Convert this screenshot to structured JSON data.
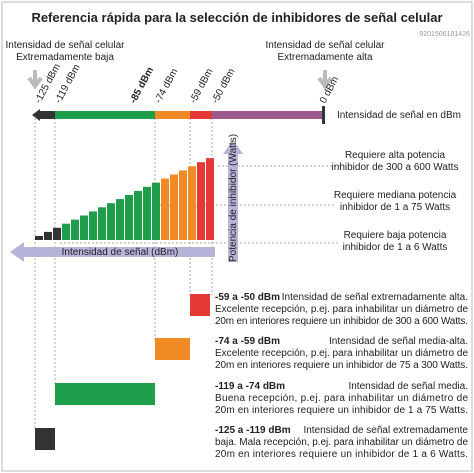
{
  "header": {
    "title": "Referencia rápida para la selección de inhibidores de señal celular",
    "image_id": "9201506181426"
  },
  "top_labels": {
    "low": [
      "Intensidad de señal celular",
      "Extremadamente baja"
    ],
    "high": [
      "Intensidad de señal celular",
      "Extremadamente alta"
    ]
  },
  "axis": {
    "label": "Intensidad de señal en dBm",
    "ticks": [
      "-125 dBm",
      "-119 dBm",
      "-85 dBm",
      "-74 dBm",
      "-59 dBm",
      "-50 dBm",
      "0 dBm"
    ]
  },
  "graphic": {
    "x_label": "Intensidad de señal (dBm)",
    "y_label": "Potencia de inhibidor (Watts)"
  },
  "requirements": [
    [
      "Requiere alta potencia",
      "inhibidor de 300 a 600 Watts"
    ],
    [
      "Requiere mediana potencia",
      "inhibidor de 1 a 75 Watts"
    ],
    [
      "Requiere baja potencia",
      "inhibidor de 1 a 6 Watts"
    ]
  ],
  "descriptions": [
    {
      "range": "-59 a -50 dBm",
      "lines": [
        "Intensidad de señal extremadamente alta.",
        "Excelente recepción, p.ej. para inhabilitar un diámetro de",
        "20m en interiores requiere un inhibidor de 300 a 600 Watts."
      ]
    },
    {
      "range": "-74 a -59 dBm",
      "lines": [
        "Intensidad de señal media-alta.",
        "Excelente recepción, p.ej. para inhabilitar un diámetro de",
        "20m en interiores requiere un inhibidor de 75 a 300 Watts."
      ]
    },
    {
      "range": "-119 a -74 dBm",
      "lines": [
        "Intensidad de señal media.",
        "Buena recepción, p.ej. para inhabilitar un diámetro de",
        "20m en interiores requiere un inhibidor de 1 a 75 Watts."
      ]
    },
    {
      "range": "-125 a -119 dBm",
      "lines": [
        "Intensidad de señal extremadamente",
        "baja. Mala recepción, p.ej. para inhabilitar un diámetro de",
        "20m en interiores requiere un inhibidor de 1 a 6 Watts."
      ]
    }
  ]
}
